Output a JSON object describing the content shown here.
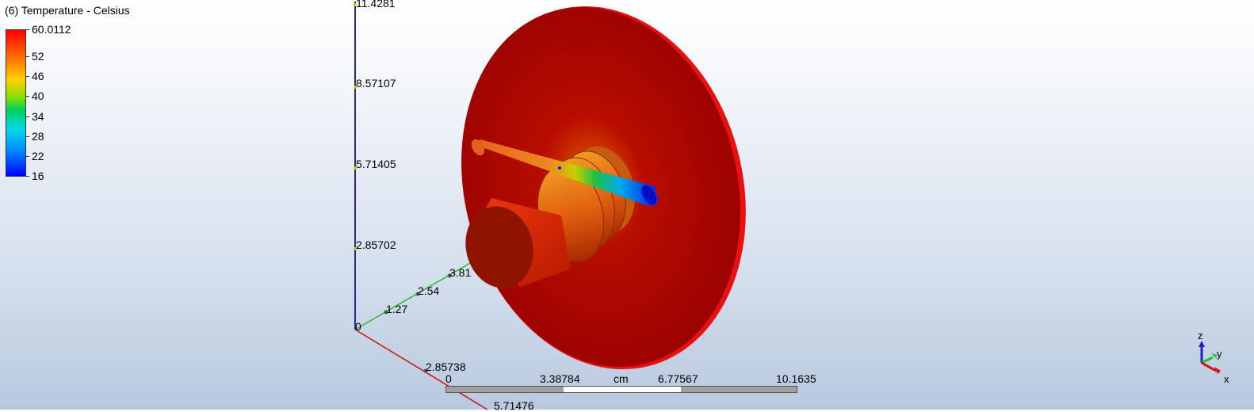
{
  "legend": {
    "title": "(6) Temperature - Celsius",
    "labels": [
      "60.0112",
      "52",
      "46",
      "40",
      "34",
      "28",
      "22",
      "16"
    ]
  },
  "axes": {
    "z_ticks": [
      "11.4281",
      "8.57107",
      "5.71405",
      "2.85702"
    ],
    "origin": "0",
    "y_ticks": [
      "1.27",
      "2.54",
      "3.81"
    ],
    "x_ticks": [
      "2.85738",
      "5.71476"
    ]
  },
  "scale": {
    "labels": [
      "0",
      "3.38784",
      "6.77567",
      "10.1635"
    ],
    "unit": "cm"
  },
  "triad": {
    "z": "z",
    "y": "y",
    "x": "x"
  },
  "colors": {
    "disc": "#b00000",
    "z_axis": "#2a2a8a",
    "y_axis": "#22c022",
    "x_axis": "#d01010",
    "scale_dark": "#a0a0a0",
    "scale_light": "#ffffff"
  }
}
